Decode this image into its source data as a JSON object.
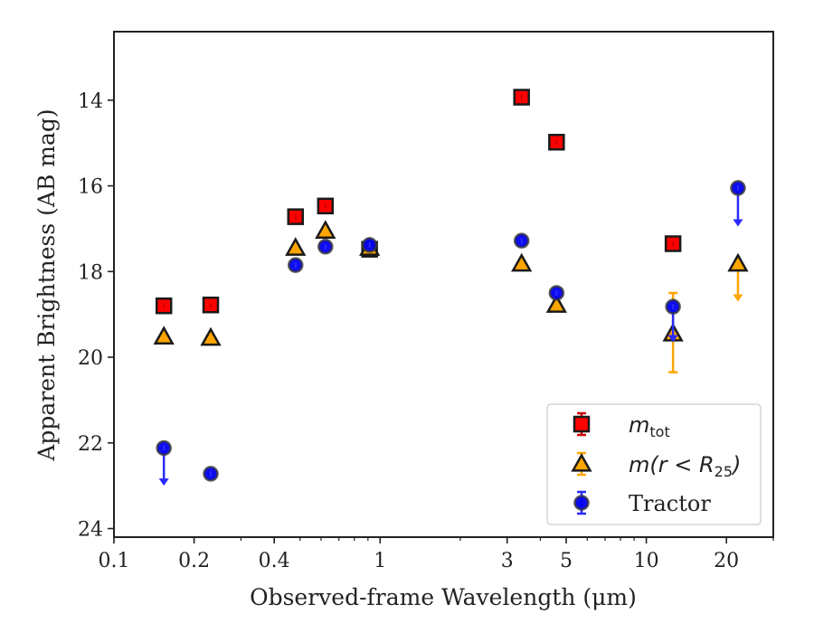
{
  "chart_data": {
    "type": "scatter",
    "title": "",
    "xlabel": "Observed-frame Wavelength (μm)",
    "ylabel": "Apparent Brightness (AB mag)",
    "x_scale": "log",
    "y_inverted": true,
    "xlim": [
      0.1,
      30
    ],
    "ylim": [
      24.2,
      12.4
    ],
    "x_ticks": [
      {
        "value": 0.1,
        "label": "0.1"
      },
      {
        "value": 0.2,
        "label": "0.2"
      },
      {
        "value": 0.4,
        "label": "0.4"
      },
      {
        "value": 1,
        "label": "1"
      },
      {
        "value": 3,
        "label": "3"
      },
      {
        "value": 5,
        "label": "5"
      },
      {
        "value": 10,
        "label": "10"
      },
      {
        "value": 20,
        "label": "20"
      }
    ],
    "x_minor_ticks": [
      0.3,
      0.5,
      0.6,
      0.7,
      0.8,
      0.9,
      2,
      4,
      6,
      7,
      8,
      9,
      30
    ],
    "y_ticks": [
      {
        "value": 14,
        "label": "14"
      },
      {
        "value": 16,
        "label": "16"
      },
      {
        "value": 18,
        "label": "18"
      },
      {
        "value": 20,
        "label": "20"
      },
      {
        "value": 22,
        "label": "22"
      },
      {
        "value": 24,
        "label": "24"
      }
    ],
    "legend_position": "lower-right",
    "series": [
      {
        "name": "m_tot",
        "legend_italic": "m",
        "legend_sub": "tot",
        "marker": "square",
        "color": "#ff0000",
        "edge": "#1a1a1a",
        "err_color": "#d00000",
        "points": [
          {
            "x": 0.154,
            "y": 18.8
          },
          {
            "x": 0.231,
            "y": 18.78
          },
          {
            "x": 0.481,
            "y": 16.72
          },
          {
            "x": 0.623,
            "y": 16.47
          },
          {
            "x": 0.913,
            "y": 17.48
          },
          {
            "x": 3.4,
            "y": 13.93
          },
          {
            "x": 4.6,
            "y": 14.98
          },
          {
            "x": 12.6,
            "y": 17.35
          }
        ]
      },
      {
        "name": "m(r<R25)",
        "legend_italic": "m(r < R",
        "legend_sub": "25",
        "legend_tail": ")",
        "marker": "triangle",
        "color": "#ffa500",
        "edge": "#1a1a1a",
        "err_color": "#ffa500",
        "points": [
          {
            "x": 0.154,
            "y": 19.52
          },
          {
            "x": 0.231,
            "y": 19.55
          },
          {
            "x": 0.481,
            "y": 17.45
          },
          {
            "x": 0.623,
            "y": 17.05
          },
          {
            "x": 0.913,
            "y": 17.45
          },
          {
            "x": 3.4,
            "y": 17.82
          },
          {
            "x": 4.6,
            "y": 18.78
          },
          {
            "x": 12.6,
            "y": 19.45,
            "err_lo": 18.5,
            "err_hi": 20.35
          },
          {
            "x": 22.1,
            "y": 17.82,
            "upper_limit_to": 18.7
          }
        ]
      },
      {
        "name": "Tractor",
        "marker": "circle",
        "color": "#0000ee",
        "edge": "#3a3a3a",
        "err_color": "#2a2aff",
        "points": [
          {
            "x": 0.154,
            "y": 22.12,
            "upper_limit_to": 23.0
          },
          {
            "x": 0.231,
            "y": 22.72
          },
          {
            "x": 0.481,
            "y": 17.85
          },
          {
            "x": 0.623,
            "y": 17.42
          },
          {
            "x": 0.913,
            "y": 17.38
          },
          {
            "x": 3.4,
            "y": 17.28
          },
          {
            "x": 4.6,
            "y": 18.5
          },
          {
            "x": 12.6,
            "y": 18.82,
            "upper_limit_to": 19.65
          },
          {
            "x": 22.1,
            "y": 16.05,
            "upper_limit_to": 16.95
          }
        ]
      }
    ]
  }
}
